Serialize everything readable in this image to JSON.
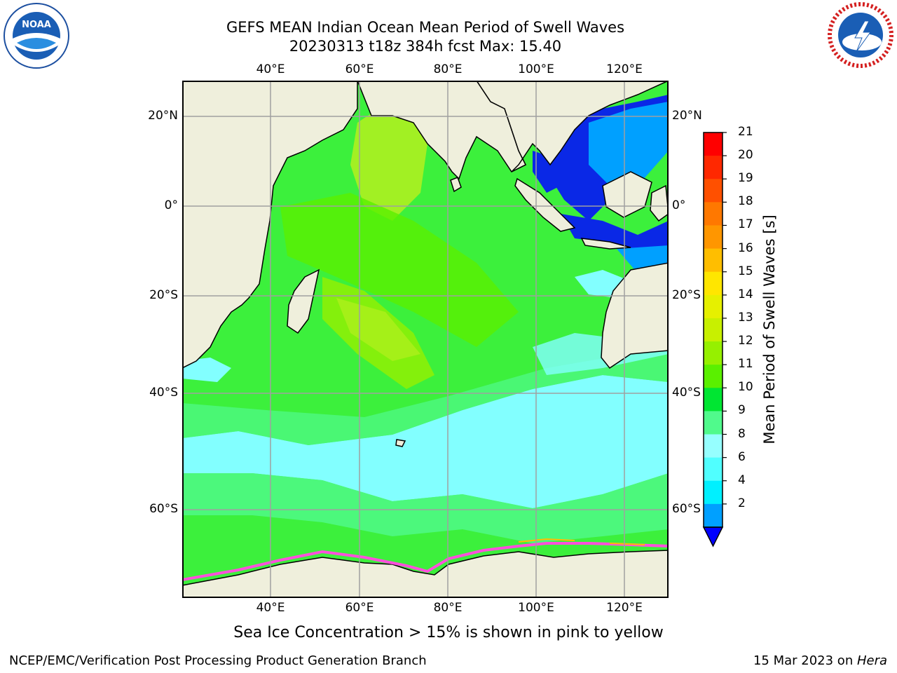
{
  "header": {
    "title_line1": "GEFS MEAN Indian Ocean Mean Period of Swell Waves",
    "title_line2": "20230313 t18z 384h fcst   Max: 15.40"
  },
  "logos": {
    "left": {
      "icon": "noaa-logo",
      "text": "NOAA"
    },
    "right": {
      "icon": "national-weather-service-logo",
      "text": "NATIONAL WEATHER SERVICE"
    }
  },
  "axes": {
    "lon_ticks": [
      "40°E",
      "60°E",
      "80°E",
      "100°E",
      "120°E"
    ],
    "lat_ticks_left": [
      "20°N",
      "0°",
      "20°S",
      "40°S",
      "60°S"
    ],
    "lat_ticks_right": [
      "20°N",
      "0°",
      "20°S",
      "40°S",
      "60°S"
    ]
  },
  "colorbar": {
    "label": "Mean Period of Swell Waves [s]",
    "ticks": [
      "21",
      "20",
      "19",
      "18",
      "17",
      "16",
      "15",
      "14",
      "13",
      "12",
      "11",
      "10",
      "9",
      "8",
      "6",
      "4",
      "2"
    ],
    "colors_top_to_bottom": [
      "#ff0000",
      "#ff2800",
      "#ff5000",
      "#ff7800",
      "#ff9600",
      "#ffbe00",
      "#ffe600",
      "#e6f000",
      "#c8f000",
      "#96f000",
      "#5af000",
      "#00e632",
      "#50fa8c",
      "#96ffff",
      "#50ffff",
      "#00f0ff",
      "#00a0ff"
    ],
    "extend_color": "#0000ff"
  },
  "map": {
    "land_color": "#efefdc",
    "ocean_colors": {
      "mid": "#3cf03c",
      "high": "#b4f01e",
      "low": "#82ffff",
      "very_low": "#0a28e6",
      "sea_ice": "#ff50dc"
    }
  },
  "subnote": "Sea Ice Concentration > 15% is shown in pink to yellow",
  "footer": {
    "left": "NCEP/EMC/Verification Post Processing Product Generation Branch",
    "right_prefix": "15 Mar 2023 on ",
    "right_host": "Hera"
  }
}
